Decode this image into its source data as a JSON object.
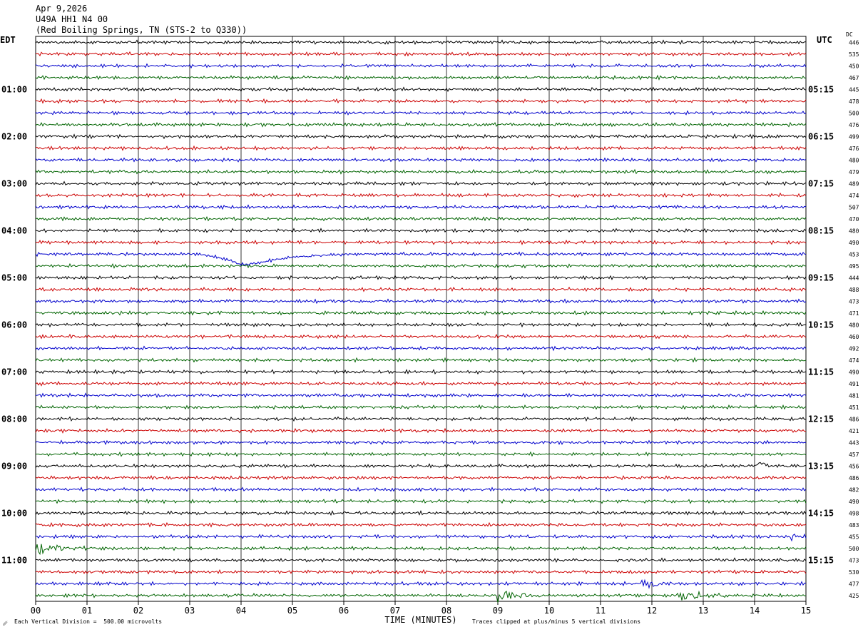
{
  "header": {
    "date": "Apr 9,2026",
    "station": "U49A HH1 N4 00",
    "location": "(Red Boiling Springs, TN (STS-2 to Q330))"
  },
  "chart_data": {
    "type": "line",
    "left_axis_label": "EDT",
    "right_axis_label": "UTC",
    "dc_label": "DC",
    "xlabel": "TIME (MINUTES)",
    "x_ticks": [
      "00",
      "01",
      "02",
      "03",
      "04",
      "05",
      "06",
      "07",
      "08",
      "09",
      "10",
      "11",
      "12",
      "13",
      "14",
      "15"
    ],
    "xlim": [
      0,
      15
    ],
    "edt_labels": [
      "01:00",
      "02:00",
      "03:00",
      "04:00",
      "05:00",
      "06:00",
      "07:00",
      "08:00",
      "09:00",
      "10:00",
      "11:00"
    ],
    "utc_labels": [
      "05:15",
      "06:15",
      "07:15",
      "08:15",
      "09:15",
      "10:15",
      "11:15",
      "12:15",
      "13:15",
      "14:15",
      "15:15"
    ],
    "dc_values": [
      "446",
      "535",
      "450",
      "467",
      "445",
      "478",
      "500",
      "476",
      "499",
      "476",
      "480",
      "479",
      "489",
      "474",
      "507",
      "470",
      "480",
      "490",
      "453",
      "495",
      "444",
      "488",
      "473",
      "471",
      "480",
      "460",
      "492",
      "474",
      "490",
      "491",
      "481",
      "451",
      "486",
      "421",
      "443",
      "457",
      "456",
      "486",
      "482",
      "490",
      "498",
      "483",
      "455",
      "500",
      "473",
      "530",
      "477",
      "425"
    ],
    "trace_colors": [
      "#000000",
      "#cc0000",
      "#0000cc",
      "#006400"
    ],
    "grid": true,
    "note_left": "Each Vertical Division =  500.00 microvolts",
    "note_right": "Traces clipped at plus/minus 5 vertical divisions",
    "events": [
      {
        "trace": 18,
        "start_min": 3.0,
        "end_min": 6.5,
        "kind": "long-period dip"
      },
      {
        "trace": 42,
        "start_min": 14.7,
        "end_min": 15.0,
        "kind": "burst"
      },
      {
        "trace": 43,
        "start_min": 0.0,
        "end_min": 1.0,
        "kind": "burst"
      },
      {
        "trace": 47,
        "start_min": 9.0,
        "end_min": 10.0,
        "kind": "burst"
      },
      {
        "trace": 47,
        "start_min": 12.5,
        "end_min": 13.5,
        "kind": "burst"
      },
      {
        "trace": 46,
        "start_min": 11.8,
        "end_min": 12.5,
        "kind": "burst"
      },
      {
        "trace": 36,
        "start_min": 14.0,
        "end_min": 14.3,
        "kind": "offset"
      }
    ]
  }
}
